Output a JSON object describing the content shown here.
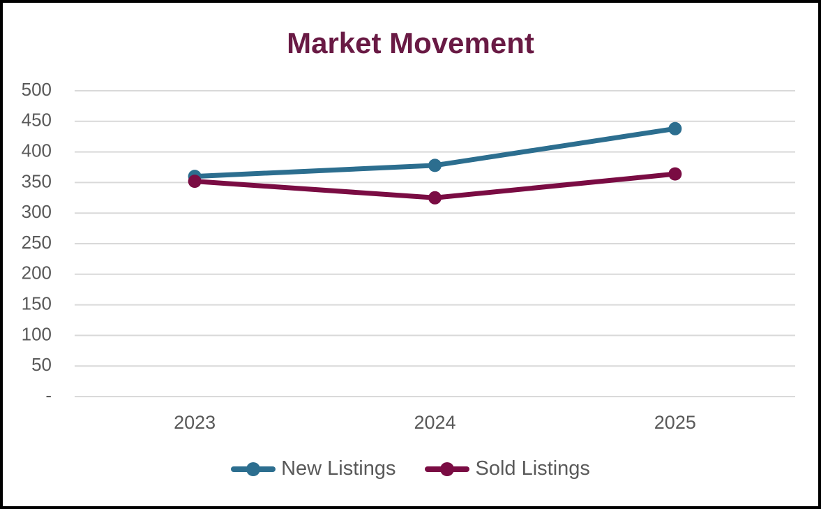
{
  "chart_data": {
    "type": "line",
    "title": "Market Movement",
    "categories": [
      "2023",
      "2024",
      "2025"
    ],
    "series": [
      {
        "name": "New Listings",
        "color": "#2C6E8F",
        "values": [
          360,
          378,
          438
        ]
      },
      {
        "name": "Sold Listings",
        "color": "#7A0C43",
        "values": [
          352,
          325,
          364
        ]
      }
    ],
    "ylim": [
      0,
      500
    ],
    "ytick_step": 50,
    "yticks": [
      {
        "value": 0,
        "label": "-"
      },
      {
        "value": 50,
        "label": "50"
      },
      {
        "value": 100,
        "label": "100"
      },
      {
        "value": 150,
        "label": "150"
      },
      {
        "value": 200,
        "label": "200"
      },
      {
        "value": 250,
        "label": "250"
      },
      {
        "value": 300,
        "label": "300"
      },
      {
        "value": 350,
        "label": "350"
      },
      {
        "value": 400,
        "label": "400"
      },
      {
        "value": 450,
        "label": "450"
      },
      {
        "value": 500,
        "label": "500"
      }
    ],
    "grid": true,
    "legend_position": "bottom"
  },
  "colors": {
    "title": "#691A44",
    "axis_text": "#595959",
    "gridline": "#D9D9D9",
    "background": "#FFFFFF",
    "border": "#000000"
  }
}
